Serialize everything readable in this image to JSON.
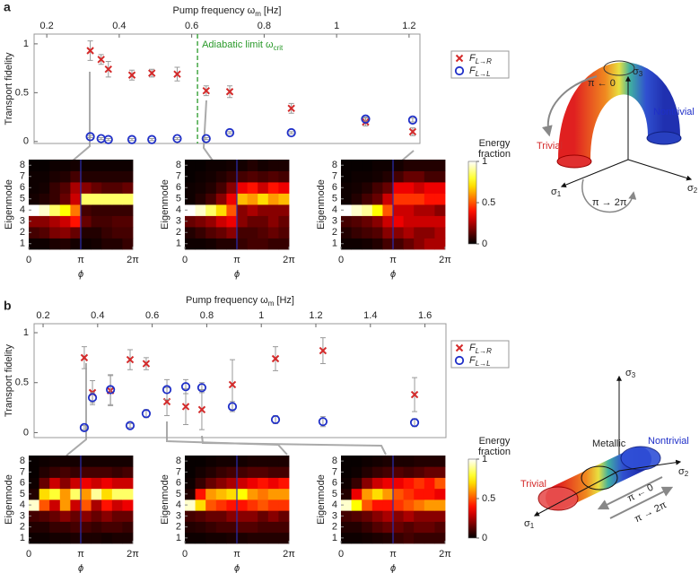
{
  "panels": [
    "a",
    "b"
  ],
  "chart_data": [
    {
      "type": "scatter",
      "xlabel": {
        "text": "Pump frequency ω",
        "sub": "m",
        "after": "[Hz]"
      },
      "ylabel": "Transport fidelity",
      "xlim": [
        0.165,
        1.23
      ],
      "xticks": [
        0.2,
        0.4,
        0.6,
        0.8,
        1,
        1.2
      ],
      "ylim": [
        -0.02,
        1.1
      ],
      "yticks": [
        0,
        0.5,
        1
      ],
      "legend": "right",
      "annotation": {
        "text": "Adiabatic limit ω",
        "sub": "crit",
        "x": 0.616,
        "color": "#2a9a2a"
      },
      "x": [
        0.32,
        0.35,
        0.37,
        0.435,
        0.49,
        0.56,
        0.64,
        0.705,
        0.875,
        1.08,
        1.21
      ],
      "series": [
        {
          "name": "F",
          "sub": "L→R",
          "marker": "x",
          "color": "#d42a2a",
          "values": [
            0.93,
            0.84,
            0.74,
            0.68,
            0.7,
            0.69,
            0.52,
            0.51,
            0.34,
            0.2,
            0.1
          ],
          "errors": [
            0.1,
            0.05,
            0.08,
            0.05,
            0.04,
            0.07,
            0.05,
            0.06,
            0.05,
            0.04,
            0.04
          ]
        },
        {
          "name": "F",
          "sub": "L→L",
          "marker": "o",
          "color": "#1f2fc8",
          "values": [
            0.05,
            0.03,
            0.02,
            0.02,
            0.02,
            0.03,
            0.03,
            0.09,
            0.09,
            0.23,
            0.22
          ],
          "errors": [
            0.01,
            0.01,
            0.01,
            0.01,
            0.01,
            0.01,
            0.01,
            0.01,
            0.01,
            0.02,
            0.02
          ]
        }
      ]
    },
    {
      "type": "heatmap",
      "xlabel": "ϕ",
      "ylabel": "Eigenmode",
      "xlim": [
        0,
        6.2832
      ],
      "xticks": [
        0,
        {
          "value": 3.1416,
          "label": "π"
        },
        {
          "value": 6.2832,
          "label": "2π"
        }
      ],
      "ylim": [
        0.5,
        8.5
      ],
      "yticks": [
        1,
        2,
        3,
        4,
        5,
        6,
        7,
        8
      ],
      "z": [
        [
          0.02,
          0.02,
          0.04,
          0.05,
          0.03,
          0.02,
          0.03,
          0.05,
          0.05,
          0.08
        ],
        [
          0.1,
          0.12,
          0.18,
          0.2,
          0.15,
          0.05,
          0.05,
          0.08,
          0.1,
          0.1
        ],
        [
          0.2,
          0.2,
          0.25,
          0.3,
          0.4,
          0.15,
          0.1,
          0.1,
          0.12,
          0.12
        ],
        [
          1,
          0.95,
          0.85,
          0.75,
          0.55,
          0.1,
          0.08,
          0.08,
          0.08,
          0.08
        ],
        [
          0.03,
          0.05,
          0.08,
          0.15,
          0.3,
          0.85,
          0.85,
          0.85,
          0.85,
          0.85
        ],
        [
          0.02,
          0.03,
          0.08,
          0.12,
          0.25,
          0.2,
          0.15,
          0.12,
          0.12,
          0.15
        ],
        [
          0.02,
          0.02,
          0.04,
          0.05,
          0.1,
          0.05,
          0.05,
          0.05,
          0.05,
          0.05
        ],
        [
          0.01,
          0.01,
          0.02,
          0.02,
          0.03,
          0.02,
          0.02,
          0.02,
          0.02,
          0.02
        ]
      ]
    },
    {
      "type": "heatmap",
      "xlabel": "ϕ",
      "ylabel": "Eigenmode",
      "xlim": [
        0,
        6.2832
      ],
      "xticks": [
        0,
        {
          "value": 3.1416,
          "label": "π"
        },
        {
          "value": 6.2832,
          "label": "2π"
        }
      ],
      "ylim": [
        0.5,
        8.5
      ],
      "yticks": [
        1,
        2,
        3,
        4,
        5,
        6,
        7,
        8
      ],
      "z": [
        [
          0.02,
          0.02,
          0.03,
          0.05,
          0.05,
          0.08,
          0.1,
          0.1,
          0.08,
          0.08
        ],
        [
          0.05,
          0.08,
          0.12,
          0.15,
          0.2,
          0.1,
          0.1,
          0.12,
          0.15,
          0.12
        ],
        [
          0.15,
          0.18,
          0.22,
          0.3,
          0.35,
          0.2,
          0.15,
          0.15,
          0.2,
          0.15
        ],
        [
          1,
          0.95,
          0.85,
          0.7,
          0.5,
          0.2,
          0.25,
          0.2,
          0.2,
          0.2
        ],
        [
          0.02,
          0.05,
          0.1,
          0.2,
          0.35,
          0.65,
          0.6,
          0.7,
          0.6,
          0.65
        ],
        [
          0.02,
          0.03,
          0.05,
          0.1,
          0.2,
          0.35,
          0.4,
          0.3,
          0.4,
          0.35
        ],
        [
          0.01,
          0.02,
          0.03,
          0.05,
          0.08,
          0.1,
          0.12,
          0.1,
          0.12,
          0.1
        ],
        [
          0.01,
          0.01,
          0.02,
          0.02,
          0.03,
          0.03,
          0.05,
          0.03,
          0.04,
          0.04
        ]
      ]
    },
    {
      "type": "heatmap",
      "xlabel": "ϕ",
      "ylabel": "Eigenmode",
      "xlim": [
        0,
        6.2832
      ],
      "xticks": [
        0,
        {
          "value": 3.1416,
          "label": "π"
        },
        {
          "value": 6.2832,
          "label": "2π"
        }
      ],
      "ylim": [
        0.5,
        8.5
      ],
      "yticks": [
        1,
        2,
        3,
        4,
        5,
        6,
        7,
        8
      ],
      "z": [
        [
          0.02,
          0.02,
          0.03,
          0.05,
          0.1,
          0.1,
          0.15,
          0.2,
          0.25,
          0.25
        ],
        [
          0.05,
          0.08,
          0.1,
          0.12,
          0.2,
          0.2,
          0.25,
          0.2,
          0.2,
          0.25
        ],
        [
          0.1,
          0.12,
          0.15,
          0.2,
          0.3,
          0.35,
          0.3,
          0.3,
          0.3,
          0.3
        ],
        [
          1,
          0.95,
          0.9,
          0.75,
          0.5,
          0.3,
          0.3,
          0.25,
          0.25,
          0.2
        ],
        [
          0.02,
          0.05,
          0.1,
          0.15,
          0.3,
          0.45,
          0.45,
          0.45,
          0.4,
          0.4
        ],
        [
          0.02,
          0.03,
          0.05,
          0.1,
          0.15,
          0.35,
          0.35,
          0.3,
          0.35,
          0.35
        ],
        [
          0.01,
          0.02,
          0.02,
          0.03,
          0.05,
          0.1,
          0.15,
          0.15,
          0.1,
          0.1
        ],
        [
          0.01,
          0.01,
          0.01,
          0.02,
          0.02,
          0.03,
          0.05,
          0.05,
          0.05,
          0.05
        ]
      ]
    },
    {
      "type": "colorbar",
      "label": [
        "Energy",
        "fraction"
      ],
      "zlim": [
        0,
        1
      ],
      "zticks": [
        0,
        0.5,
        1
      ]
    },
    {
      "type": "scatter",
      "xlabel": {
        "text": "Pump frequency ω",
        "sub": "m",
        "after": "[Hz]"
      },
      "ylabel": "Transport fidelity",
      "xlim": [
        0.167,
        1.677
      ],
      "xticks": [
        0.2,
        0.4,
        0.6,
        0.8,
        1,
        1.2,
        1.4,
        1.6
      ],
      "ylim": [
        -0.05,
        1.09
      ],
      "yticks": [
        0,
        0.5,
        1
      ],
      "legend": "right",
      "x": [
        0.351,
        0.381,
        0.447,
        0.519,
        0.578,
        0.654,
        0.723,
        0.782,
        0.894,
        1.052,
        1.226,
        1.562
      ],
      "series": [
        {
          "name": "F",
          "sub": "L→R",
          "marker": "x",
          "color": "#d42a2a",
          "values": [
            0.75,
            0.4,
            0.42,
            0.73,
            0.69,
            0.31,
            0.26,
            0.23,
            0.48,
            0.74,
            0.82,
            0.38
          ],
          "errors": [
            0.11,
            0.12,
            0.15,
            0.1,
            0.06,
            0.14,
            0.18,
            0.2,
            0.25,
            0.12,
            0.13,
            0.17
          ]
        },
        {
          "name": "F",
          "sub": "L→L",
          "marker": "o",
          "color": "#1f2fc8",
          "values": [
            0.05,
            0.35,
            0.43,
            0.07,
            0.19,
            0.43,
            0.46,
            0.45,
            0.26,
            0.13,
            0.11,
            0.1
          ],
          "errors": [
            0.02,
            0.05,
            0.15,
            0.02,
            0.04,
            0.1,
            0.07,
            0.05,
            0.05,
            0.04,
            0.05,
            0.04
          ]
        }
      ]
    },
    {
      "type": "heatmap",
      "xlabel": "ϕ",
      "ylabel": "Eigenmode",
      "xlim": [
        0,
        6.2832
      ],
      "xticks": [
        0,
        {
          "value": 3.1416,
          "label": "π"
        },
        {
          "value": 6.2832,
          "label": "2π"
        }
      ],
      "ylim": [
        0.5,
        8.5
      ],
      "yticks": [
        1,
        2,
        3,
        4,
        5,
        6,
        7,
        8
      ],
      "z": [
        [
          0.02,
          0.02,
          0.03,
          0.03,
          0.04,
          0.04,
          0.04,
          0.03,
          0.04,
          0.04
        ],
        [
          0.05,
          0.05,
          0.08,
          0.08,
          0.1,
          0.1,
          0.08,
          0.1,
          0.1,
          0.08
        ],
        [
          0.1,
          0.12,
          0.15,
          0.2,
          0.15,
          0.2,
          0.15,
          0.2,
          0.15,
          0.15
        ],
        [
          0.95,
          0.5,
          0.3,
          0.6,
          0.3,
          0.5,
          0.25,
          0.4,
          0.3,
          0.35
        ],
        [
          0.05,
          0.7,
          0.8,
          0.6,
          0.85,
          0.6,
          0.9,
          0.7,
          0.85,
          0.85
        ],
        [
          0.02,
          0.15,
          0.3,
          0.2,
          0.3,
          0.35,
          0.3,
          0.35,
          0.3,
          0.3
        ],
        [
          0.01,
          0.05,
          0.08,
          0.1,
          0.08,
          0.1,
          0.1,
          0.1,
          0.08,
          0.1
        ],
        [
          0.01,
          0.02,
          0.03,
          0.03,
          0.03,
          0.03,
          0.03,
          0.03,
          0.03,
          0.03
        ]
      ]
    },
    {
      "type": "heatmap",
      "xlabel": "ϕ",
      "ylabel": "Eigenmode",
      "xlim": [
        0,
        6.2832
      ],
      "xticks": [
        0,
        {
          "value": 3.1416,
          "label": "π"
        },
        {
          "value": 6.2832,
          "label": "2π"
        }
      ],
      "ylim": [
        0.5,
        8.5
      ],
      "yticks": [
        1,
        2,
        3,
        4,
        5,
        6,
        7,
        8
      ],
      "z": [
        [
          0.02,
          0.02,
          0.03,
          0.03,
          0.04,
          0.04,
          0.05,
          0.05,
          0.05,
          0.05
        ],
        [
          0.05,
          0.06,
          0.08,
          0.1,
          0.1,
          0.12,
          0.12,
          0.1,
          0.1,
          0.1
        ],
        [
          0.1,
          0.12,
          0.15,
          0.15,
          0.2,
          0.2,
          0.2,
          0.15,
          0.2,
          0.15
        ],
        [
          0.95,
          0.7,
          0.5,
          0.45,
          0.4,
          0.4,
          0.45,
          0.5,
          0.45,
          0.45
        ],
        [
          0.05,
          0.4,
          0.6,
          0.65,
          0.7,
          0.75,
          0.6,
          0.55,
          0.6,
          0.6
        ],
        [
          0.02,
          0.08,
          0.15,
          0.2,
          0.25,
          0.3,
          0.35,
          0.4,
          0.35,
          0.4
        ],
        [
          0.01,
          0.03,
          0.05,
          0.08,
          0.1,
          0.1,
          0.12,
          0.12,
          0.1,
          0.1
        ],
        [
          0.01,
          0.01,
          0.02,
          0.03,
          0.03,
          0.03,
          0.04,
          0.04,
          0.04,
          0.04
        ]
      ]
    },
    {
      "type": "heatmap",
      "xlabel": "ϕ",
      "ylabel": "Eigenmode",
      "xlim": [
        0,
        6.2832
      ],
      "xticks": [
        0,
        {
          "value": 3.1416,
          "label": "π"
        },
        {
          "value": 6.2832,
          "label": "2π"
        }
      ],
      "ylim": [
        0.5,
        8.5
      ],
      "yticks": [
        1,
        2,
        3,
        4,
        5,
        6,
        7,
        8
      ],
      "z": [
        [
          0.02,
          0.02,
          0.03,
          0.04,
          0.05,
          0.08,
          0.1,
          0.08,
          0.08,
          0.08
        ],
        [
          0.05,
          0.05,
          0.08,
          0.12,
          0.15,
          0.15,
          0.12,
          0.15,
          0.15,
          0.12
        ],
        [
          0.1,
          0.12,
          0.15,
          0.2,
          0.25,
          0.2,
          0.25,
          0.2,
          0.2,
          0.2
        ],
        [
          0.95,
          0.75,
          0.5,
          0.4,
          0.4,
          0.45,
          0.5,
          0.55,
          0.6,
          0.6
        ],
        [
          0.05,
          0.35,
          0.6,
          0.7,
          0.6,
          0.5,
          0.45,
          0.4,
          0.4,
          0.35
        ],
        [
          0.02,
          0.08,
          0.2,
          0.3,
          0.35,
          0.35,
          0.4,
          0.45,
          0.4,
          0.5
        ],
        [
          0.01,
          0.02,
          0.05,
          0.08,
          0.1,
          0.12,
          0.1,
          0.12,
          0.15,
          0.15
        ],
        [
          0.01,
          0.01,
          0.02,
          0.03,
          0.04,
          0.04,
          0.04,
          0.05,
          0.05,
          0.05
        ]
      ]
    },
    {
      "type": "colorbar",
      "label": [
        "Energy",
        "fraction"
      ],
      "zlim": [
        0,
        1
      ],
      "zticks": [
        0,
        0.5,
        1
      ]
    }
  ],
  "diagrams": [
    {
      "arrow_top": "π ← 0",
      "arrow_bottom": "π → 2π",
      "trivial": "Trivial",
      "nontrivial": "Nontrivial",
      "s1": {
        "text": "σ",
        "sub": "1"
      },
      "s2": {
        "text": "σ",
        "sub": "2"
      },
      "s3": {
        "text": "σ",
        "sub": "3"
      }
    },
    {
      "arrow_top": "π ← 0",
      "arrow_bottom": "π → 2π",
      "trivial": "Trivial",
      "nontrivial": "Nontrivial",
      "metallic": "Metallic",
      "s1": {
        "text": "σ",
        "sub": "1"
      },
      "s2": {
        "text": "σ",
        "sub": "2"
      },
      "s3": {
        "text": "σ",
        "sub": "3"
      }
    }
  ]
}
